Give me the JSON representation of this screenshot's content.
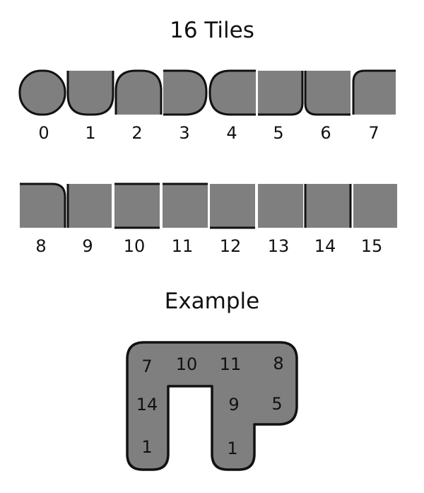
{
  "title": "16 Tiles",
  "example_title": "Example",
  "tiles": [
    {
      "label": "0"
    },
    {
      "label": "1"
    },
    {
      "label": "2"
    },
    {
      "label": "3"
    },
    {
      "label": "4"
    },
    {
      "label": "5"
    },
    {
      "label": "6"
    },
    {
      "label": "7"
    },
    {
      "label": "8"
    },
    {
      "label": "9"
    },
    {
      "label": "10"
    },
    {
      "label": "11"
    },
    {
      "label": "12"
    },
    {
      "label": "13"
    },
    {
      "label": "14"
    },
    {
      "label": "15"
    }
  ],
  "example": {
    "labels": [
      "7",
      "10",
      "11",
      "8",
      "14",
      "9",
      "5",
      "1",
      "1"
    ]
  },
  "colors": {
    "fill": "#7f7f7f",
    "shade": "#6a6a6a",
    "outline": "#111111",
    "background": "#ffffff"
  }
}
